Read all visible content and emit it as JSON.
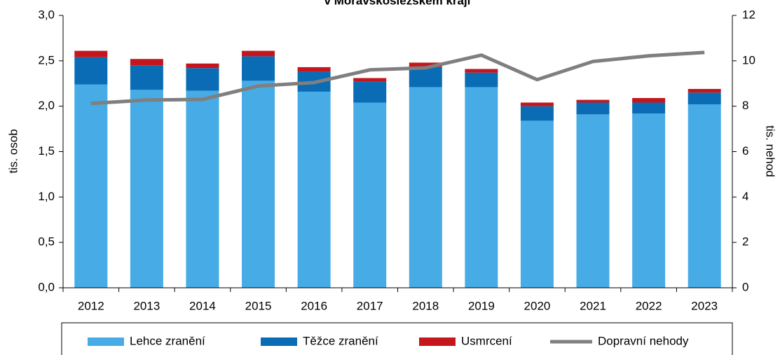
{
  "chart_data": {
    "type": "bar",
    "stacked": true,
    "title": "v Moravskoslezském kraji",
    "y_label": "tis. osob",
    "y2_label": "tis. nehod",
    "categories": [
      "2012",
      "2013",
      "2014",
      "2015",
      "2016",
      "2017",
      "2018",
      "2019",
      "2020",
      "2021",
      "2022",
      "2023"
    ],
    "series": [
      {
        "name": "Lehce zranění",
        "color": "#47abe6",
        "type": "bar",
        "values": [
          2.24,
          2.18,
          2.17,
          2.28,
          2.16,
          2.04,
          2.21,
          2.21,
          1.84,
          1.91,
          1.92,
          2.02
        ]
      },
      {
        "name": "Těžce zranění",
        "color": "#0a6cb5",
        "type": "bar",
        "values": [
          0.3,
          0.27,
          0.25,
          0.27,
          0.22,
          0.23,
          0.22,
          0.16,
          0.16,
          0.13,
          0.12,
          0.13
        ]
      },
      {
        "name": "Usmrcení",
        "color": "#c4161c",
        "type": "bar",
        "values": [
          0.07,
          0.07,
          0.05,
          0.06,
          0.05,
          0.04,
          0.05,
          0.04,
          0.04,
          0.03,
          0.05,
          0.04
        ]
      },
      {
        "name": "Dopravní nehody",
        "color": "#7f7f7f",
        "type": "line",
        "axis": "y2",
        "values": [
          8.12,
          8.27,
          8.3,
          8.89,
          9.04,
          9.6,
          9.69,
          10.25,
          9.17,
          9.97,
          10.22,
          10.37
        ]
      }
    ],
    "ylim": [
      0,
      3
    ],
    "yticks": [
      {
        "value": 0,
        "label": "0,0"
      },
      {
        "value": 0.5,
        "label": "0,5"
      },
      {
        "value": 1,
        "label": "1,0"
      },
      {
        "value": 1.5,
        "label": "1,5"
      },
      {
        "value": 2,
        "label": "2,0"
      },
      {
        "value": 2.5,
        "label": "2,5"
      },
      {
        "value": 3,
        "label": "3,0"
      }
    ],
    "y2lim": [
      0,
      12
    ],
    "y2ticks": [
      0,
      2,
      4,
      6,
      8,
      10,
      12
    ],
    "legend": "bottom"
  }
}
